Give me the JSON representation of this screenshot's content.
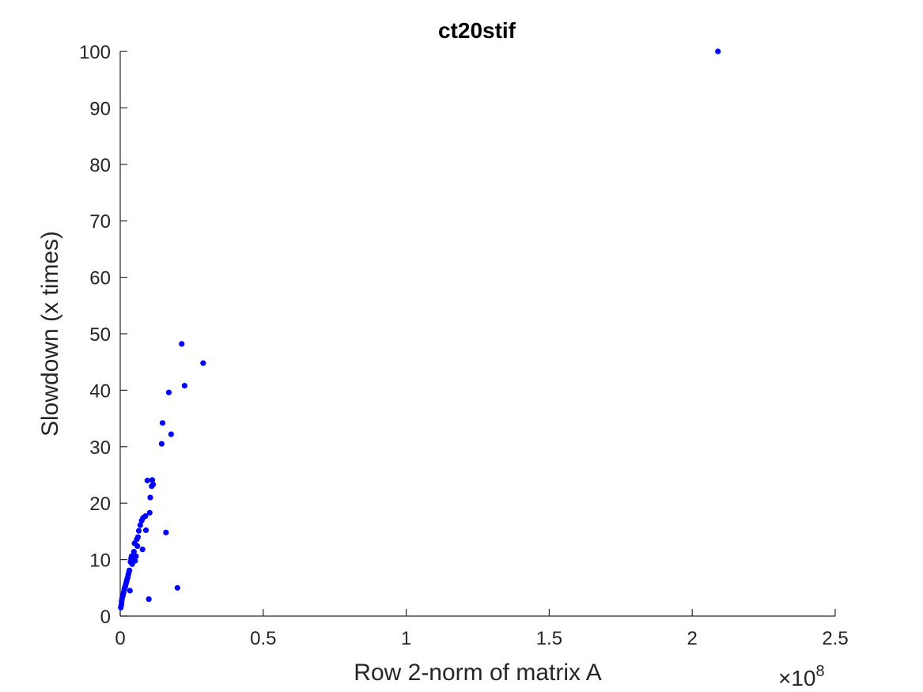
{
  "chart_data": {
    "type": "scatter",
    "title": "ct20stif",
    "xlabel": "Row 2-norm of matrix A",
    "ylabel": "Slowdown (x times)",
    "x_exponent_label": "×10",
    "x_exponent_power": "8",
    "x_scale_factor": 100000000,
    "xlim": [
      0,
      2.5
    ],
    "ylim": [
      0,
      100
    ],
    "x_ticks": [
      0,
      0.5,
      1,
      1.5,
      2,
      2.5
    ],
    "x_tick_labels": [
      "0",
      "0.5",
      "1",
      "1.5",
      "2",
      "2.5"
    ],
    "y_ticks": [
      0,
      10,
      20,
      30,
      40,
      50,
      60,
      70,
      80,
      90,
      100
    ],
    "y_tick_labels": [
      "0",
      "10",
      "20",
      "30",
      "40",
      "50",
      "60",
      "70",
      "80",
      "90",
      "100"
    ],
    "grid": false,
    "marker_color": "#0000ff",
    "series": [
      {
        "points": [
          [
            0.002,
            1.5
          ],
          [
            0.004,
            2.0
          ],
          [
            0.005,
            2.6
          ],
          [
            0.006,
            3.0
          ],
          [
            0.008,
            3.4
          ],
          [
            0.01,
            3.8
          ],
          [
            0.012,
            4.2
          ],
          [
            0.014,
            4.7
          ],
          [
            0.016,
            5.0
          ],
          [
            0.018,
            5.3
          ],
          [
            0.02,
            5.7
          ],
          [
            0.022,
            6.1
          ],
          [
            0.024,
            6.5
          ],
          [
            0.026,
            6.8
          ],
          [
            0.028,
            7.3
          ],
          [
            0.03,
            7.7
          ],
          [
            0.032,
            8.1
          ],
          [
            0.034,
            4.5
          ],
          [
            0.036,
            9.6
          ],
          [
            0.038,
            10.2
          ],
          [
            0.04,
            10.6
          ],
          [
            0.042,
            9.2
          ],
          [
            0.045,
            10.0
          ],
          [
            0.048,
            11.4
          ],
          [
            0.05,
            12.9
          ],
          [
            0.052,
            9.8
          ],
          [
            0.055,
            10.6
          ],
          [
            0.058,
            13.6
          ],
          [
            0.06,
            12.4
          ],
          [
            0.062,
            14.0
          ],
          [
            0.065,
            15.1
          ],
          [
            0.07,
            16.1
          ],
          [
            0.075,
            16.9
          ],
          [
            0.078,
            11.8
          ],
          [
            0.08,
            17.4
          ],
          [
            0.088,
            17.7
          ],
          [
            0.09,
            15.2
          ],
          [
            0.095,
            24.0
          ],
          [
            0.1,
            3.0
          ],
          [
            0.103,
            18.3
          ],
          [
            0.105,
            21.0
          ],
          [
            0.11,
            23.0
          ],
          [
            0.112,
            24.1
          ],
          [
            0.115,
            23.3
          ],
          [
            0.145,
            30.5
          ],
          [
            0.148,
            34.2
          ],
          [
            0.16,
            14.8
          ],
          [
            0.17,
            39.6
          ],
          [
            0.178,
            32.2
          ],
          [
            0.2,
            5.0
          ],
          [
            0.215,
            48.2
          ],
          [
            0.225,
            40.8
          ],
          [
            0.29,
            44.8
          ],
          [
            2.09,
            100.0
          ]
        ]
      }
    ]
  }
}
